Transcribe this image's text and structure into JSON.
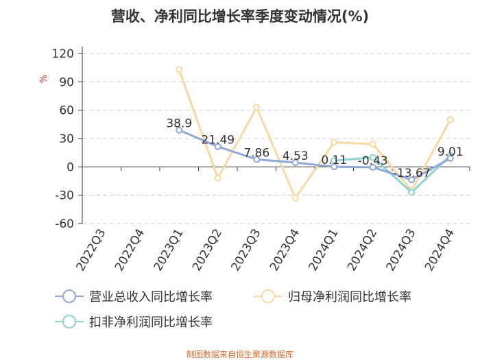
{
  "chart_data": {
    "type": "line",
    "title": "营收、净利同比增长率季度变动情况(%)",
    "ylabel": "%",
    "ylim": [
      -60,
      120
    ],
    "yticks": [
      120,
      90,
      60,
      30,
      0,
      -30,
      -60
    ],
    "grid": true,
    "legend_position": "bottom",
    "categories": [
      "2022Q3",
      "2022Q4",
      "2023Q1",
      "2023Q2",
      "2023Q3",
      "2023Q4",
      "2024Q1",
      "2024Q2",
      "2024Q3",
      "2024Q4"
    ],
    "series": [
      {
        "name": "营业总收入同比增长率",
        "color": "#8fa8d8",
        "values": [
          null,
          null,
          38.9,
          21.49,
          7.86,
          4.53,
          0.11,
          -0.43,
          -13.67,
          9.01
        ],
        "labels": [
          null,
          null,
          "38.9",
          "21.49",
          "7.86",
          "4.53",
          "0.11",
          "-0.43",
          "-13.67",
          "9.01"
        ]
      },
      {
        "name": "归母净利润同比增长率",
        "color": "#f9d9a0",
        "values": [
          null,
          null,
          103,
          -12,
          63,
          -33,
          26,
          24,
          -25,
          50
        ]
      },
      {
        "name": "扣非净利润同比增长率",
        "color": "#8dd3cf",
        "values": [
          null,
          null,
          null,
          null,
          null,
          null,
          6.5,
          10,
          -27,
          12
        ]
      }
    ]
  },
  "source_note": "制图数据来自恒生聚源数据库",
  "colors": {
    "axis": "#333333",
    "grid": "#cccccc",
    "source": "#e06a2b",
    "unit": "#e0342b"
  }
}
